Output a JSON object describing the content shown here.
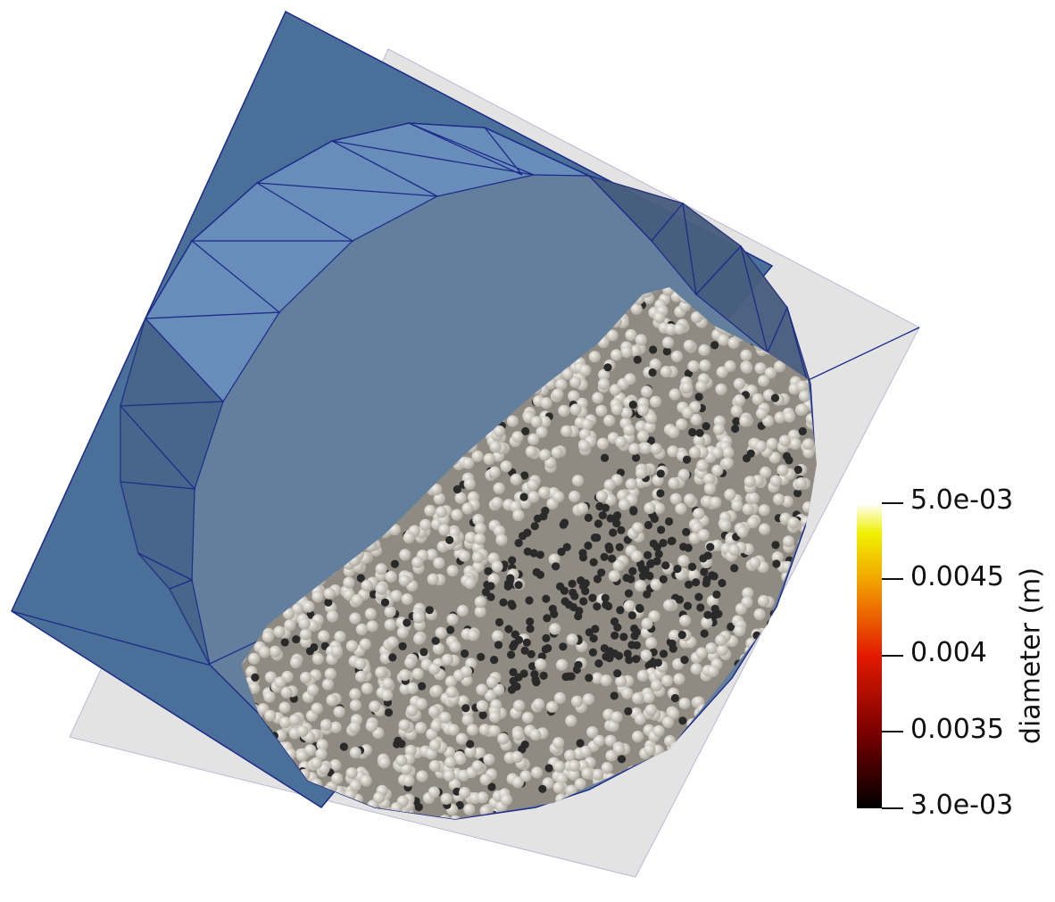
{
  "viewer": {
    "colors": {
      "background": "#ffffff",
      "plane_blue": "#4a6f98",
      "plane_gray": "#e3e3e3",
      "drum_wall": "#6d93c0",
      "drum_face": "#637f9e",
      "edge_lines": "#1c2a8a",
      "particle_light": "#d6d2ca",
      "particle_dark": "#2a2a2a"
    }
  },
  "legend": {
    "title": "diameter (m)",
    "colormap": "black-body",
    "ticks": [
      "5.0e-03",
      "0.0045",
      "0.004",
      "0.0035",
      "3.0e-03"
    ],
    "range": [
      0.003,
      0.005
    ]
  }
}
